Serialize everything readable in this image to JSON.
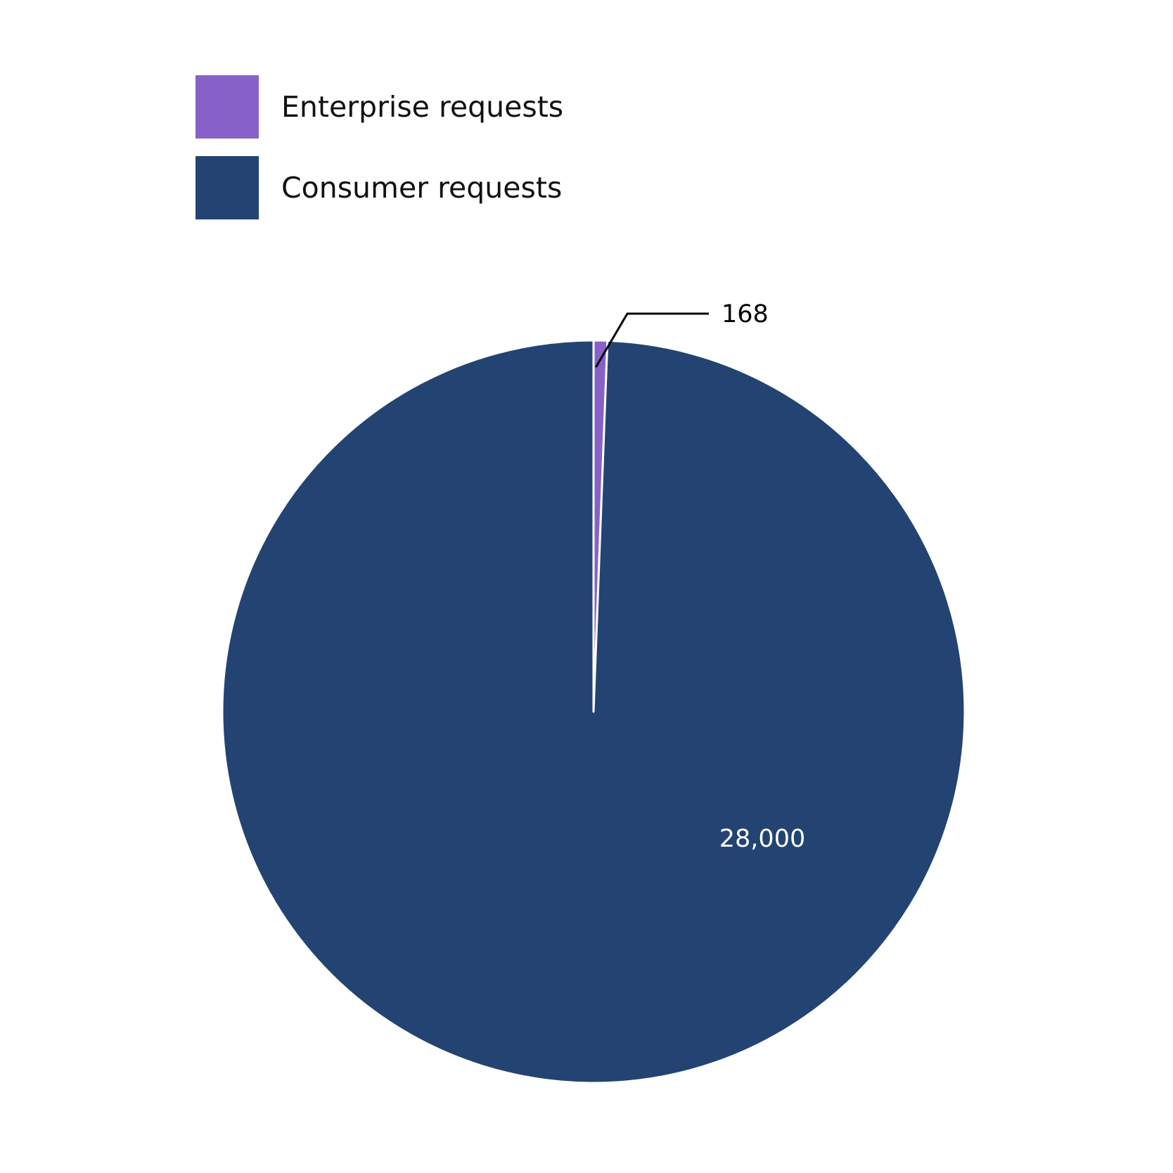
{
  "chart_data": {
    "type": "pie",
    "categories": [
      "Enterprise requests",
      "Consumer requests"
    ],
    "values": [
      168,
      28000
    ],
    "data_labels": [
      "168",
      "28,000"
    ],
    "colors": [
      "#8861c8",
      "#234472"
    ],
    "legend_position": "top-left",
    "start_angle": "12 o'clock, clockwise"
  }
}
